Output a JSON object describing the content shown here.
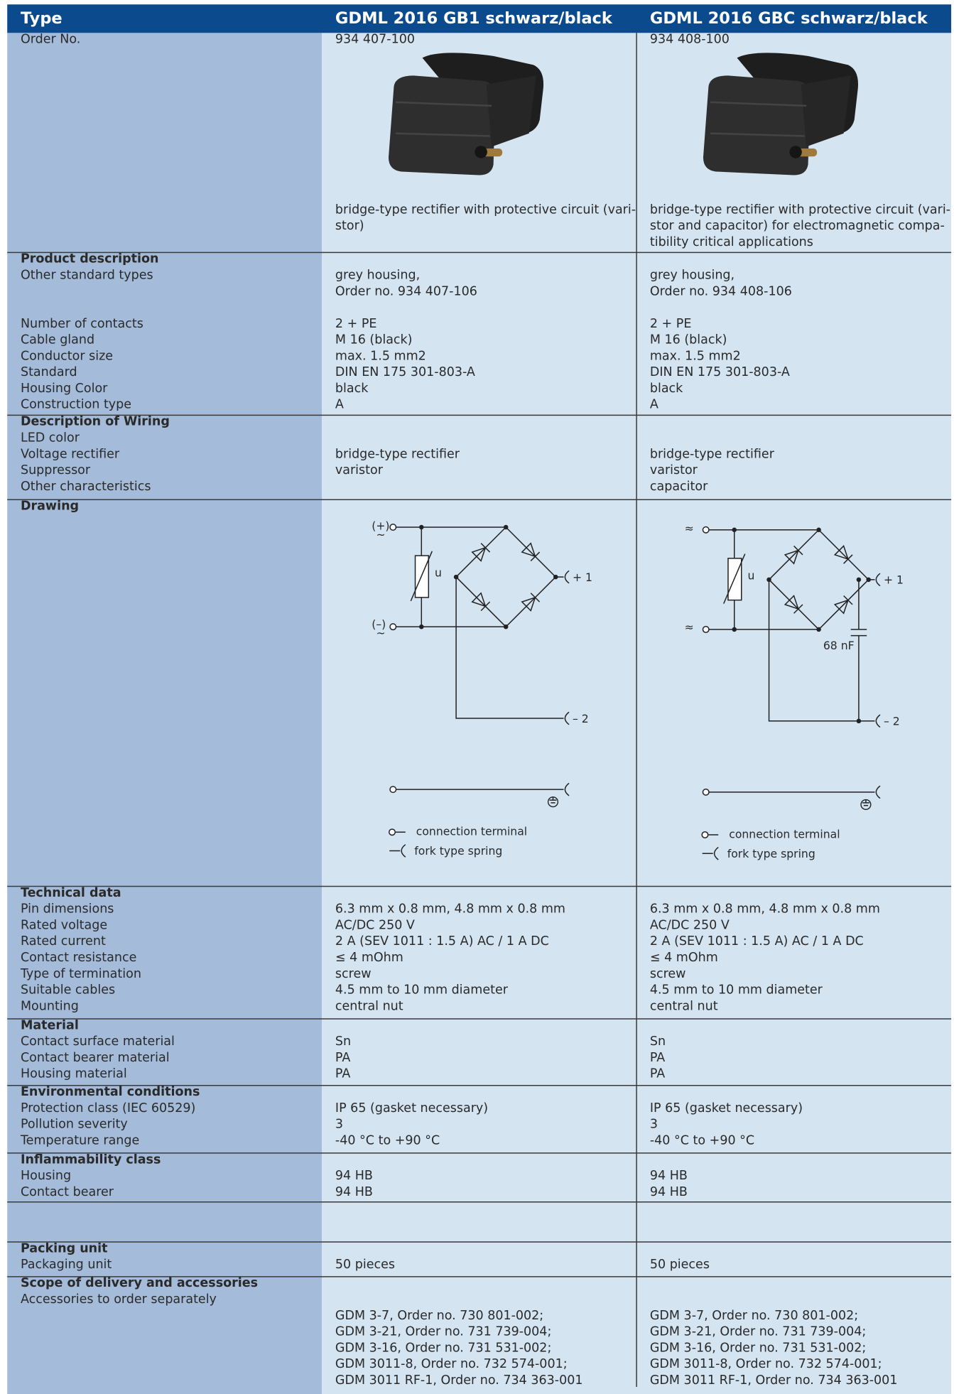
{
  "header": {
    "columns": [
      "Type",
      "GDML 2016 GB1 schwarz/black",
      "GDML 2016 GBC schwarz/black"
    ]
  },
  "sections": [
    {
      "rows": [
        {
          "label": "Order No.",
          "values": [
            [
              "934 407-100"
            ],
            [
              "934 408-100"
            ]
          ]
        }
      ],
      "description": [
        [
          "bridge-type rectifier with protective circuit (vari-",
          "stor)"
        ],
        [
          "bridge-type rectifier with protective circuit (vari-",
          "stor and capacitor) for electromagnetic compa-",
          "tibility critical applications"
        ]
      ]
    },
    {
      "heading": "Product description",
      "rows": [
        {
          "label": "Other standard types",
          "values": [
            [
              "grey housing,",
              "Order no. 934 407-106"
            ],
            [
              "grey housing,",
              "Order no. 934 408-106"
            ]
          ]
        },
        {
          "label": "Number of contacts",
          "values": [
            [
              "2 + PE"
            ],
            [
              "2 + PE"
            ]
          ]
        },
        {
          "label": "Cable gland",
          "values": [
            [
              "M 16 (black)"
            ],
            [
              "M 16 (black)"
            ]
          ]
        },
        {
          "label": "Conductor size",
          "values": [
            [
              "max. 1.5 mm2"
            ],
            [
              "max. 1.5 mm2"
            ]
          ]
        },
        {
          "label": "Standard",
          "values": [
            [
              "DIN EN 175 301-803-A"
            ],
            [
              "DIN EN 175 301-803-A"
            ]
          ]
        },
        {
          "label": "Housing Color",
          "values": [
            [
              "black"
            ],
            [
              "black"
            ]
          ]
        },
        {
          "label": "Construction type",
          "values": [
            [
              "A"
            ],
            [
              "A"
            ]
          ]
        }
      ]
    },
    {
      "heading": "Description of Wiring",
      "rows": [
        {
          "label": "LED color"
        },
        {
          "label": "Voltage rectifier",
          "values": [
            [
              "bridge-type rectifier"
            ],
            [
              "bridge-type rectifier"
            ]
          ]
        },
        {
          "label": "Suppressor",
          "values": [
            [
              "varistor"
            ],
            [
              "varistor"
            ]
          ]
        },
        {
          "label": "Other characteristics",
          "values": [
            [],
            [
              "capacitor"
            ]
          ]
        }
      ]
    },
    {
      "heading": "Drawing",
      "drawings": [
        {
          "terminal_pos": "(+)",
          "terminal_neg": "(–)",
          "terminal_ac": "~",
          "varistor": "u",
          "out1": "+ 1",
          "out2": "– 2",
          "legend": [
            "connection terminal",
            "fork type spring"
          ]
        },
        {
          "terminal_pos": "≈",
          "terminal_neg": "≈",
          "varistor": "u",
          "out1": "+ 1",
          "out2": "– 2",
          "capacitor": "68 nF",
          "legend": [
            "connection terminal",
            "fork type spring"
          ]
        }
      ]
    },
    {
      "heading": "Technical data",
      "rows": [
        {
          "label": "Pin dimensions",
          "values": [
            [
              "6.3 mm x 0.8 mm, 4.8 mm x 0.8 mm"
            ],
            [
              "6.3 mm x 0.8 mm, 4.8 mm x 0.8 mm"
            ]
          ]
        },
        {
          "label": "Rated voltage",
          "values": [
            [
              "AC/DC 250 V"
            ],
            [
              "AC/DC 250 V"
            ]
          ]
        },
        {
          "label": "Rated current",
          "values": [
            [
              "2 A (SEV 1011 : 1.5 A) AC / 1 A DC"
            ],
            [
              "2 A (SEV 1011 : 1.5 A) AC / 1 A DC"
            ]
          ]
        },
        {
          "label": "Contact resistance",
          "values": [
            [
              "≤ 4 mOhm"
            ],
            [
              "≤ 4 mOhm"
            ]
          ]
        },
        {
          "label": "Type of termination",
          "values": [
            [
              "screw"
            ],
            [
              "screw"
            ]
          ]
        },
        {
          "label": "Suitable cables",
          "values": [
            [
              "4.5 mm to 10 mm diameter"
            ],
            [
              "4.5 mm to 10 mm diameter"
            ]
          ]
        },
        {
          "label": "Mounting",
          "values": [
            [
              "central nut"
            ],
            [
              "central nut"
            ]
          ]
        }
      ]
    },
    {
      "heading": "Material",
      "rows": [
        {
          "label": "Contact surface material",
          "values": [
            [
              "Sn"
            ],
            [
              "Sn"
            ]
          ]
        },
        {
          "label": "Contact bearer material",
          "values": [
            [
              "PA"
            ],
            [
              "PA"
            ]
          ]
        },
        {
          "label": "Housing material",
          "values": [
            [
              "PA"
            ],
            [
              "PA"
            ]
          ]
        }
      ]
    },
    {
      "heading": "Environmental conditions",
      "rows": [
        {
          "label": "Protection class (IEC 60529)",
          "values": [
            [
              "IP 65 (gasket necessary)"
            ],
            [
              "IP 65 (gasket necessary)"
            ]
          ]
        },
        {
          "label": "Pollution severity",
          "values": [
            [
              "3"
            ],
            [
              "3"
            ]
          ]
        },
        {
          "label": "Temperature range",
          "values": [
            [
              "-40 °C to +90 °C"
            ],
            [
              "-40 °C to +90 °C"
            ]
          ]
        }
      ]
    },
    {
      "heading": "Inflammability class",
      "rows": [
        {
          "label": "Housing",
          "values": [
            [
              "94 HB"
            ],
            [
              "94 HB"
            ]
          ]
        },
        {
          "label": "Contact bearer",
          "values": [
            [
              "94 HB"
            ],
            [
              "94 HB"
            ]
          ]
        }
      ]
    },
    {
      "heading": "Packing unit",
      "rows": [
        {
          "label": "Packaging unit",
          "values": [
            [
              "50 pieces"
            ],
            [
              "50 pieces"
            ]
          ]
        }
      ]
    },
    {
      "heading": "Scope of delivery and accessories",
      "rows": [
        {
          "label": "Accessories to order separately",
          "values": [
            [
              "GDM 3-7, Order no. 730 801-002;",
              "GDM 3-21, Order no. 731 739-004;",
              "GDM 3-16, Order no. 731 531-002;",
              "GDM 3011-8, Order no. 732 574-001;",
              "GDM 3011 RF-1, Order no. 734 363-001"
            ],
            [
              "GDM 3-7, Order no. 730 801-002;",
              "GDM 3-21, Order no. 731 739-004;",
              "GDM 3-16, Order no. 731 531-002;",
              "GDM 3011-8, Order no. 732 574-001;",
              "GDM 3011 RF-1, Order no. 734 363-001"
            ]
          ]
        }
      ]
    }
  ]
}
